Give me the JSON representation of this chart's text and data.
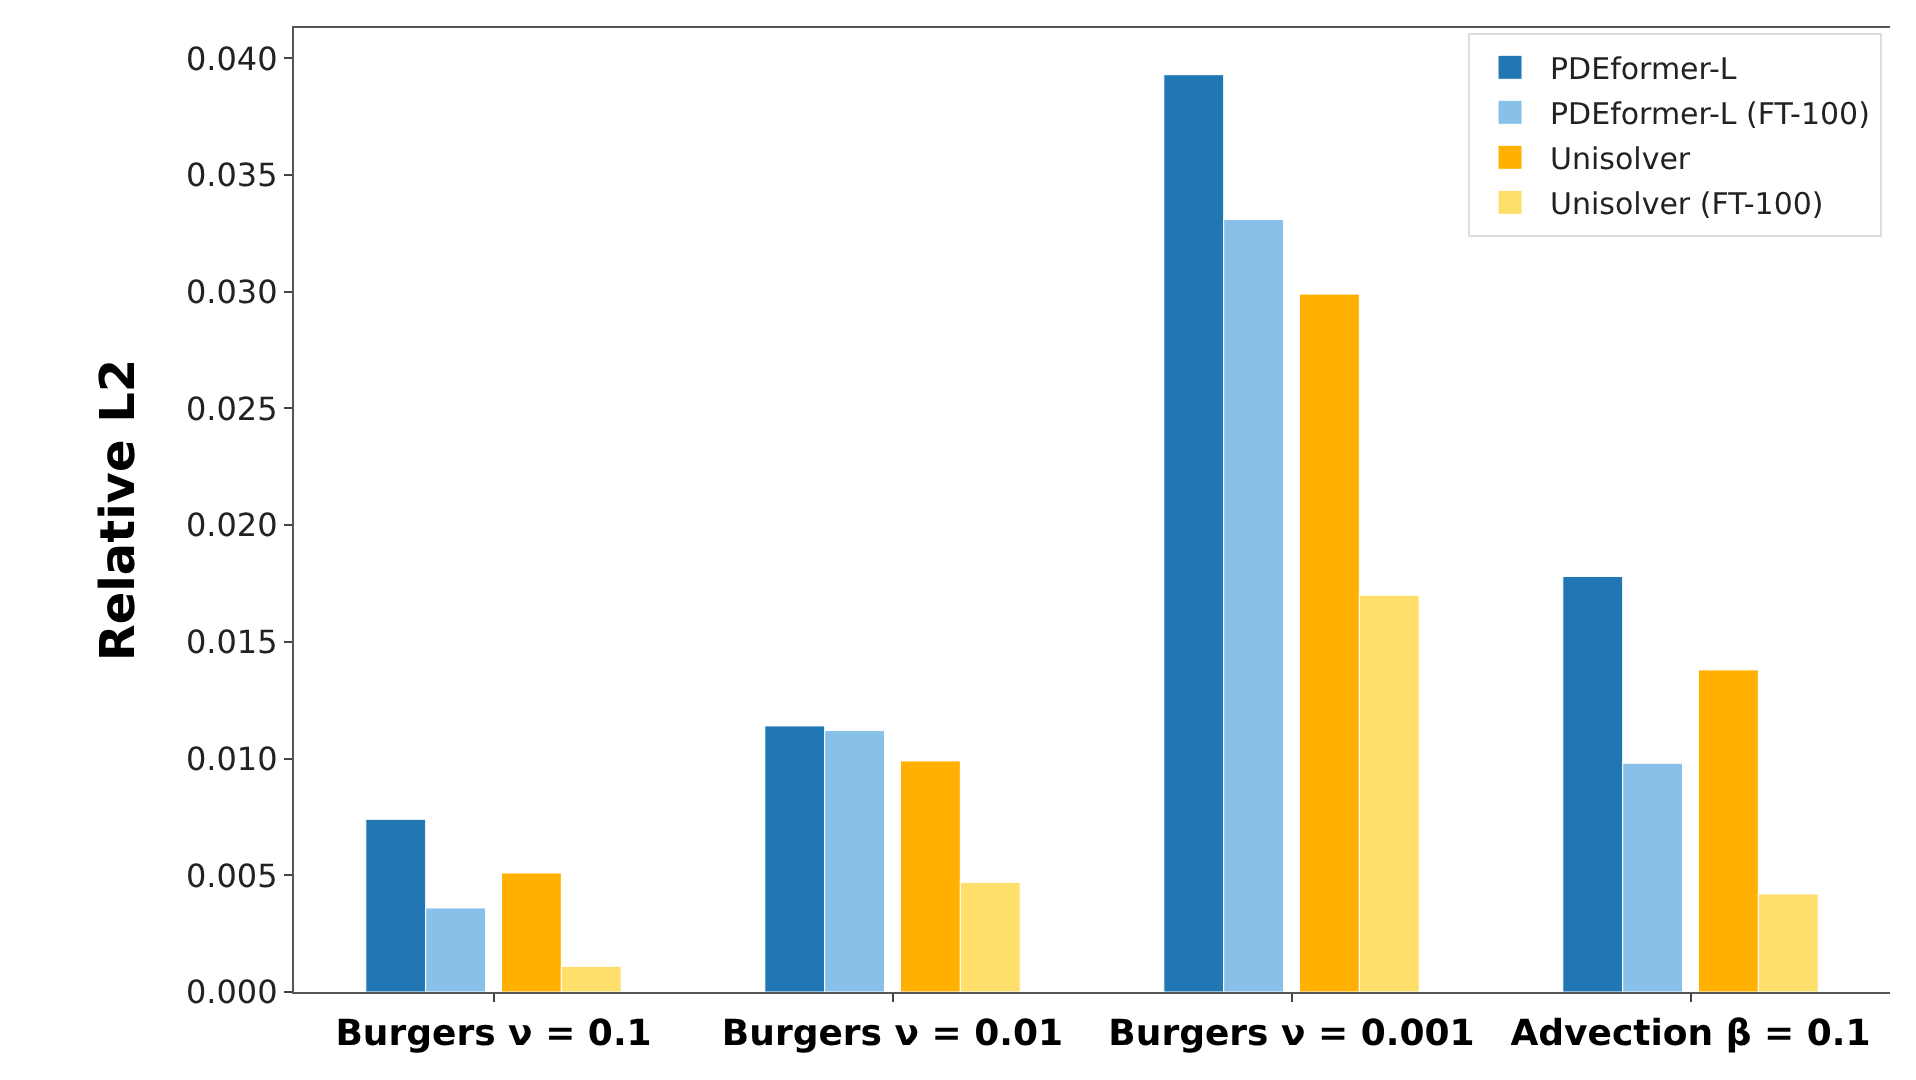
{
  "chart_data": {
    "type": "bar",
    "ylabel": "Relative L2",
    "categories": [
      "Burgers ν = 0.1",
      "Burgers ν = 0.01",
      "Burgers ν = 0.001",
      "Advection β = 0.1"
    ],
    "series": [
      {
        "name": "PDEformer-L",
        "color": "#2077b4",
        "values": [
          0.0074,
          0.0114,
          0.0393,
          0.0178
        ]
      },
      {
        "name": "PDEformer-L (FT-100)",
        "color": "#87c0e8",
        "values": [
          0.0036,
          0.0112,
          0.0331,
          0.0098
        ]
      },
      {
        "name": "Unisolver",
        "color": "#ffb000",
        "values": [
          0.0051,
          0.0099,
          0.0299,
          0.0138
        ]
      },
      {
        "name": "Unisolver (FT-100)",
        "color": "#ffdf6b",
        "values": [
          0.0011,
          0.0047,
          0.017,
          0.0042
        ]
      }
    ],
    "ylim": [
      0,
      0.0413
    ],
    "yticks": [
      {
        "value": 0,
        "label": "0.000"
      },
      {
        "value": 0.005,
        "label": "0.005"
      },
      {
        "value": 0.01,
        "label": "0.010"
      },
      {
        "value": 0.015,
        "label": "0.015"
      },
      {
        "value": 0.02,
        "label": "0.020"
      },
      {
        "value": 0.025,
        "label": "0.025"
      },
      {
        "value": 0.03,
        "label": "0.030"
      },
      {
        "value": 0.035,
        "label": "0.035"
      },
      {
        "value": 0.04,
        "label": "0.040"
      }
    ],
    "legend": "top right"
  }
}
